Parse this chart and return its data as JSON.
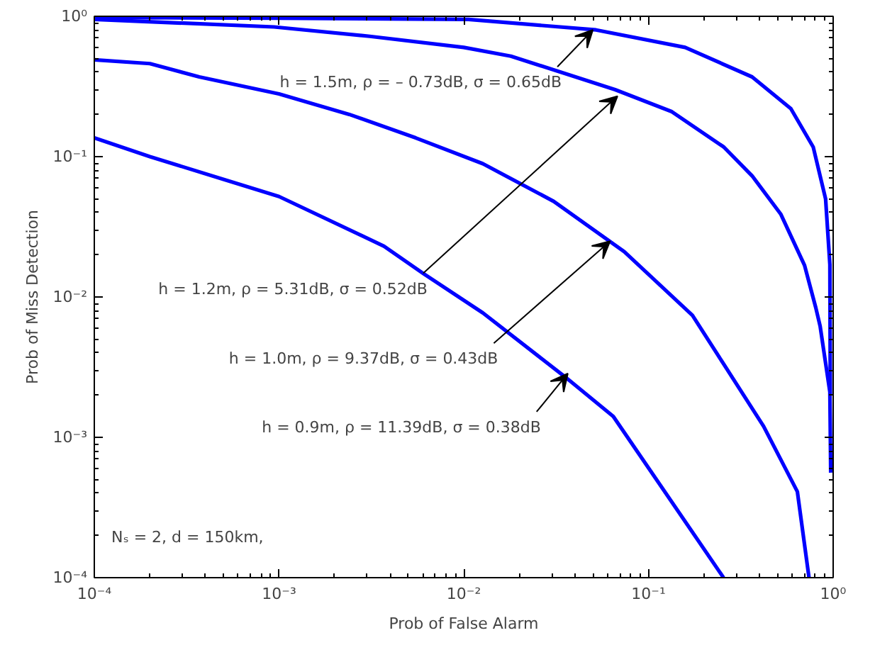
{
  "chart_data": {
    "type": "line",
    "xlabel": "Prob of False Alarm",
    "ylabel": "Prob of Miss Detection",
    "log": "xy",
    "grid": false,
    "line_style": "solid",
    "marker": "none",
    "xlim": [
      0.0001,
      1
    ],
    "ylim": [
      0.0001,
      1
    ],
    "xticks": [
      {
        "value": 0.0001,
        "label": "10⁻⁴"
      },
      {
        "value": 0.001,
        "label": "10⁻³"
      },
      {
        "value": 0.01,
        "label": "10⁻²"
      },
      {
        "value": 0.1,
        "label": "10⁻¹"
      },
      {
        "value": 1,
        "label": "10⁰"
      }
    ],
    "yticks": [
      {
        "value": 0.0001,
        "label": "10⁻⁴"
      },
      {
        "value": 0.001,
        "label": "10⁻³"
      },
      {
        "value": 0.01,
        "label": "10⁻²"
      },
      {
        "value": 0.1,
        "label": "10⁻¹"
      },
      {
        "value": 1,
        "label": "10⁰"
      }
    ],
    "series": [
      {
        "color": "#0000ff",
        "x": [
          0.0001,
          0.001,
          0.0106,
          0.052,
          0.158,
          0.364,
          0.59,
          0.78,
          0.91,
          0.96,
          0.965
        ],
        "values": [
          0.98,
          0.97,
          0.95,
          0.8,
          0.6,
          0.37,
          0.22,
          0.117,
          0.05,
          0.017,
          0.002
        ]
      },
      {
        "color": "#0000ff",
        "x": [
          0.0001,
          0.00094,
          0.0031,
          0.01,
          0.018,
          0.066,
          0.133,
          0.256,
          0.364,
          0.52,
          0.7,
          0.805,
          0.85,
          0.96,
          0.97
        ],
        "values": [
          0.95,
          0.84,
          0.72,
          0.6,
          0.52,
          0.3,
          0.21,
          0.117,
          0.073,
          0.039,
          0.0168,
          0.0084,
          0.0062,
          0.0021,
          0.00056
        ]
      },
      {
        "color": "#0000ff",
        "x": [
          0.0001,
          0.0002,
          0.00037,
          0.001,
          0.0024,
          0.0055,
          0.0127,
          0.0307,
          0.074,
          0.173,
          0.42,
          0.64,
          0.74
        ],
        "values": [
          0.49,
          0.46,
          0.37,
          0.28,
          0.2,
          0.136,
          0.089,
          0.048,
          0.021,
          0.0074,
          0.0012,
          0.00041,
          0.0001
        ]
      },
      {
        "color": "#0000ff",
        "x": [
          0.0001,
          0.0002,
          0.001,
          0.0037,
          0.006,
          0.0127,
          0.0353,
          0.0645,
          0.255
        ],
        "values": [
          0.136,
          0.1,
          0.052,
          0.023,
          0.0148,
          0.0077,
          0.0027,
          0.00141,
          0.0001
        ]
      }
    ],
    "annotations": [
      {
        "text": "h = 1.5m, ρ = – 0.73dB, σ = 0.65dB",
        "x": 0.05,
        "y": 0.8
      },
      {
        "text": "h = 1.2m, ρ = 5.31dB, σ = 0.52dB",
        "x": 0.068,
        "y": 0.27
      },
      {
        "text": "h = 1.0m, ρ = 9.37dB, σ = 0.43dB",
        "x": 0.062,
        "y": 0.025
      },
      {
        "text": "h = 0.9m, ρ = 11.39dB, σ = 0.38dB",
        "x": 0.0366,
        "y": 0.00285
      },
      "Nₛ = 2, d = 150km,"
    ]
  }
}
